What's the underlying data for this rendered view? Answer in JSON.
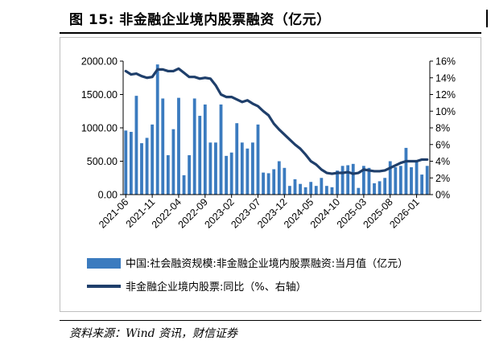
{
  "figure": {
    "title": "图 15:  非金融企业境内股票融资（亿元）",
    "source": "资料来源：Wind 资讯，财信证券"
  },
  "colors": {
    "bar": "#3b7bbf",
    "line": "#1f3f6b",
    "axis": "#000000",
    "frame": "#bfbfbf"
  },
  "chart_data": {
    "type": "bar+line",
    "x": [
      "2021-06",
      "2021-07",
      "2021-08",
      "2021-09",
      "2021-10",
      "2021-11",
      "2021-12",
      "2022-01",
      "2022-02",
      "2022-03",
      "2022-04",
      "2022-05",
      "2022-06",
      "2022-07",
      "2022-08",
      "2022-09",
      "2022-10",
      "2022-11",
      "2022-12",
      "2023-01",
      "2023-02",
      "2023-03",
      "2023-04",
      "2023-05",
      "2023-06",
      "2023-07",
      "2023-08",
      "2023-09",
      "2023-10",
      "2023-11",
      "2023-12",
      "2024-01",
      "2024-02",
      "2024-03",
      "2024-04",
      "2024-05",
      "2024-06",
      "2024-07",
      "2024-08",
      "2024-09",
      "2024-10",
      "2024-11",
      "2024-12",
      "2025-01",
      "2025-02",
      "2025-03",
      "2025-04",
      "2025-05",
      "2025-06",
      "2025-07",
      "2025-08",
      "2025-09",
      "2025-10",
      "2025-11",
      "2025-12",
      "2026-01",
      "2026-02",
      "2026-03"
    ],
    "x_tick_labels": [
      "2021-06",
      "2021-11",
      "2022-04",
      "2022-09",
      "2023-02",
      "2023-07",
      "2023-12",
      "2024-05",
      "2024-10",
      "2025-03",
      "2025-08",
      "2026-01"
    ],
    "series": [
      {
        "name": "中国:社会融资规模:非金融企业境内股票融资:当月值（亿元）",
        "kind": "bar",
        "axis": "left",
        "values": [
          960,
          940,
          1480,
          770,
          850,
          1050,
          1950,
          1440,
          590,
          980,
          1450,
          290,
          590,
          1440,
          1180,
          1350,
          780,
          780,
          1350,
          580,
          630,
          1070,
          780,
          690,
          780,
          1050,
          330,
          320,
          380,
          500,
          400,
          130,
          230,
          160,
          110,
          190,
          130,
          250,
          130,
          110,
          360,
          430,
          440,
          460,
          100,
          430,
          400,
          170,
          200,
          250,
          500,
          410,
          430,
          700,
          410,
          500,
          300,
          430
        ]
      },
      {
        "name": "非金融企业境内股票:同比（%、右轴）",
        "kind": "line",
        "axis": "right",
        "values": [
          14.8,
          14.4,
          14.5,
          14.2,
          14.0,
          14.1,
          15.0,
          15.0,
          14.8,
          14.8,
          15.1,
          14.6,
          14.1,
          14.1,
          13.9,
          14.0,
          13.9,
          13.1,
          12.0,
          11.7,
          11.7,
          11.4,
          11.1,
          11.3,
          10.9,
          10.6,
          10.0,
          9.5,
          8.5,
          7.8,
          7.2,
          6.6,
          6.0,
          5.5,
          4.8,
          4.0,
          3.6,
          3.0,
          2.6,
          2.5,
          2.6,
          2.6,
          2.7,
          2.5,
          2.6,
          3.0,
          2.9,
          2.8,
          2.8,
          2.9,
          3.2,
          3.5,
          3.8,
          4.0,
          4.0,
          4.0,
          4.2,
          4.2
        ]
      }
    ],
    "y_left": {
      "ylim": [
        0,
        2000
      ],
      "ticks": [
        "0.00",
        "500.00",
        "1000.00",
        "1500.00",
        "2000.00"
      ]
    },
    "y_right": {
      "ylim": [
        0,
        16
      ],
      "ticks": [
        "0%",
        "2%",
        "4%",
        "6%",
        "8%",
        "10%",
        "12%",
        "14%",
        "16%"
      ]
    },
    "legend": {
      "position": "bottom",
      "items": [
        "中国:社会融资规模:非金融企业境内股票融资:当月值（亿元）",
        "非金融企业境内股票:同比（%、右轴）"
      ]
    },
    "grid": false
  }
}
